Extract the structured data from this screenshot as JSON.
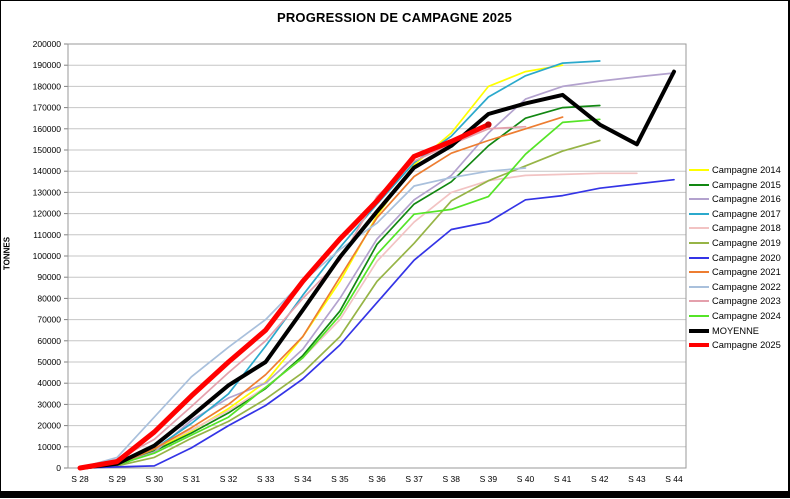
{
  "title": "PROGRESSION DE CAMPAGNE 2025",
  "chart_data": {
    "type": "line",
    "title": "PROGRESSION DE CAMPAGNE 2025",
    "xlabel": "",
    "ylabel": "TONNES",
    "ylim": [
      0,
      200000
    ],
    "ytick_step": 10000,
    "y_ticks": [
      0,
      10000,
      20000,
      30000,
      40000,
      50000,
      60000,
      70000,
      80000,
      90000,
      100000,
      110000,
      120000,
      130000,
      140000,
      150000,
      160000,
      170000,
      180000,
      190000,
      200000
    ],
    "grid": true,
    "legend_position": "right",
    "x_categories": [
      "S 28",
      "S 29",
      "S 30",
      "S 31",
      "S 32",
      "S 33",
      "S 34",
      "S 35",
      "S 36",
      "S 37",
      "S 38",
      "S 39",
      "S 40",
      "S 41",
      "S 42",
      "S 43",
      "S 44"
    ],
    "series": [
      {
        "name": "Campagne 2014",
        "color": "#FFFF00",
        "width": 1.7,
        "values": [
          0,
          2000,
          8500,
          17500,
          28000,
          40500,
          62000,
          88000,
          119000,
          143000,
          158000,
          180000,
          187000,
          190000,
          null,
          null,
          null
        ]
      },
      {
        "name": "Campagne 2015",
        "color": "#128712",
        "width": 1.7,
        "values": [
          0,
          1000,
          8000,
          16500,
          26000,
          37500,
          53000,
          74000,
          105500,
          124500,
          135000,
          152000,
          165000,
          170000,
          171000,
          null,
          null
        ]
      },
      {
        "name": "Campagne 2016",
        "color": "#B3A2CE",
        "width": 1.7,
        "values": [
          0,
          1500,
          7500,
          22500,
          33000,
          40000,
          56000,
          80000,
          108000,
          126500,
          138000,
          158000,
          174000,
          180000,
          182500,
          184500,
          186300
        ]
      },
      {
        "name": "Campagne 2017",
        "color": "#2BA9CC",
        "width": 1.7,
        "values": [
          0,
          2000,
          9000,
          21000,
          35000,
          57500,
          81500,
          104000,
          124500,
          144000,
          156500,
          175000,
          185000,
          191000,
          192000,
          null,
          null
        ]
      },
      {
        "name": "Campagne 2018",
        "color": "#F2C3C3",
        "width": 1.7,
        "values": [
          0,
          2000,
          9500,
          18000,
          27000,
          38000,
          52000,
          70000,
          97500,
          116000,
          130000,
          135500,
          138000,
          138500,
          139000,
          139000,
          null
        ]
      },
      {
        "name": "Campagne 2019",
        "color": "#96B446",
        "width": 1.7,
        "values": [
          0,
          1000,
          5000,
          14000,
          22000,
          32500,
          45000,
          62000,
          88000,
          106000,
          126000,
          135500,
          142500,
          149500,
          154500,
          null,
          null
        ]
      },
      {
        "name": "Campagne 2020",
        "color": "#3434E6",
        "width": 1.7,
        "values": [
          0,
          500,
          1000,
          9500,
          20000,
          29500,
          42000,
          58000,
          78000,
          98000,
          112500,
          116000,
          126500,
          128500,
          132000,
          134000,
          136000
        ]
      },
      {
        "name": "Campagne 2021",
        "color": "#ED7D31",
        "width": 1.7,
        "values": [
          0,
          1500,
          9000,
          19000,
          30000,
          44000,
          62000,
          90000,
          118000,
          137500,
          148500,
          154500,
          160000,
          165500,
          null,
          null,
          null
        ]
      },
      {
        "name": "Campagne 2022",
        "color": "#A9C0DC",
        "width": 1.7,
        "values": [
          0,
          5000,
          24000,
          43000,
          57000,
          70000,
          88000,
          103000,
          115500,
          133000,
          137000,
          140000,
          141500,
          null,
          null,
          null,
          null
        ]
      },
      {
        "name": "Campagne 2023",
        "color": "#E4A0AC",
        "width": 1.7,
        "values": [
          0,
          4000,
          13500,
          29000,
          45000,
          60000,
          80000,
          98000,
          128000,
          144800,
          152700,
          160000,
          161000,
          null,
          null,
          null,
          null
        ]
      },
      {
        "name": "Campagne 2024",
        "color": "#55E427",
        "width": 1.7,
        "values": [
          0,
          1500,
          7000,
          15500,
          24000,
          38000,
          52000,
          72000,
          100800,
          119700,
          122000,
          128000,
          148000,
          163000,
          164500,
          null,
          null
        ]
      },
      {
        "name": "MOYENNE",
        "color": "#000000",
        "width": 4,
        "values": [
          0,
          2000,
          10500,
          24500,
          39000,
          50000,
          74500,
          99500,
          121000,
          141700,
          152000,
          167000,
          172000,
          176000,
          162000,
          152700,
          187000
        ]
      },
      {
        "name": "Campagne 2025",
        "color": "#FF0000",
        "width": 5,
        "end_marker": "#C00000",
        "values": [
          0,
          3000,
          17000,
          34000,
          50000,
          65000,
          88000,
          108000,
          126000,
          147000,
          154000,
          162000,
          null,
          null,
          null,
          null,
          null
        ]
      }
    ]
  },
  "style": {
    "grid_color": "#C6C6C6",
    "axis_color": "#9A9A9A",
    "tick_color": "#808080",
    "text_color": "#000000"
  }
}
